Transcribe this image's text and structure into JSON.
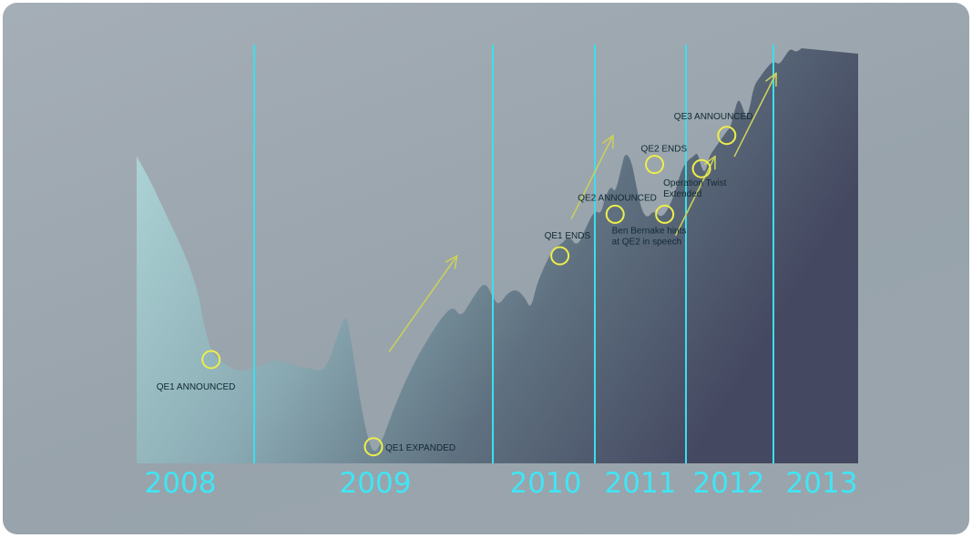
{
  "chart_data": {
    "type": "area",
    "colors": {
      "area_start": "#b3dcdc",
      "area_end": "#444860",
      "year_line": "#39e0f0",
      "year_label": "#3fe6f5",
      "marker": "#eeee4a",
      "arrow": "#c9cf5e"
    },
    "years": [
      {
        "label": "2008",
        "x_position": 2008.0
      },
      {
        "label": "2009",
        "x_position": 2009.0
      },
      {
        "label": "2010",
        "x_position": 2010.0
      },
      {
        "label": "2011",
        "x_position": 2011.0
      },
      {
        "label": "2012",
        "x_position": 2012.0
      },
      {
        "label": "2013",
        "x_position": 2013.0
      }
    ],
    "year_dividers": [
      2008.6,
      2009.8,
      2010.5,
      2011.4,
      2012.3
    ],
    "x_range": [
      2008.0,
      2013.8
    ],
    "y_range": [
      0,
      100
    ],
    "series": [
      {
        "values": [
          [
            2008.0,
            74
          ],
          [
            2008.06,
            69
          ],
          [
            2008.12,
            63
          ],
          [
            2008.18,
            57
          ],
          [
            2008.24,
            51
          ],
          [
            2008.28,
            46
          ],
          [
            2008.32,
            40
          ],
          [
            2008.34,
            34
          ],
          [
            2008.38,
            27
          ],
          [
            2008.42,
            25
          ],
          [
            2008.48,
            23
          ],
          [
            2008.54,
            22
          ],
          [
            2008.6,
            23
          ],
          [
            2008.66,
            24
          ],
          [
            2008.72,
            25
          ],
          [
            2008.78,
            24
          ],
          [
            2008.84,
            23
          ],
          [
            2008.88,
            23
          ],
          [
            2008.94,
            22
          ],
          [
            2008.98,
            25
          ],
          [
            2009.02,
            31
          ],
          [
            2009.06,
            36
          ],
          [
            2009.08,
            32
          ],
          [
            2009.12,
            19
          ],
          [
            2009.16,
            8
          ],
          [
            2009.2,
            2
          ],
          [
            2009.24,
            5
          ],
          [
            2009.3,
            13
          ],
          [
            2009.38,
            22
          ],
          [
            2009.46,
            29
          ],
          [
            2009.54,
            35
          ],
          [
            2009.6,
            38
          ],
          [
            2009.64,
            35
          ],
          [
            2009.7,
            40
          ],
          [
            2009.76,
            44
          ],
          [
            2009.8,
            40
          ],
          [
            2009.84,
            38
          ],
          [
            2009.9,
            41
          ],
          [
            2009.96,
            42
          ],
          [
            2010.02,
            40
          ],
          [
            2010.06,
            37
          ],
          [
            2010.1,
            43
          ],
          [
            2010.16,
            48
          ],
          [
            2010.22,
            52
          ],
          [
            2010.28,
            53
          ],
          [
            2010.32,
            55
          ],
          [
            2010.38,
            52
          ],
          [
            2010.44,
            57
          ],
          [
            2010.5,
            61
          ],
          [
            2010.56,
            60
          ],
          [
            2010.6,
            64
          ],
          [
            2010.66,
            67
          ],
          [
            2010.7,
            65
          ],
          [
            2010.76,
            71
          ],
          [
            2010.8,
            75
          ],
          [
            2010.86,
            73
          ],
          [
            2010.9,
            68
          ],
          [
            2010.96,
            61
          ],
          [
            2011.02,
            59
          ],
          [
            2011.08,
            61
          ],
          [
            2011.16,
            59
          ],
          [
            2011.24,
            62
          ],
          [
            2011.3,
            66
          ],
          [
            2011.36,
            71
          ],
          [
            2011.42,
            73
          ],
          [
            2011.48,
            74
          ],
          [
            2011.52,
            75
          ],
          [
            2011.56,
            71
          ],
          [
            2011.6,
            70
          ],
          [
            2011.64,
            74
          ],
          [
            2011.7,
            76
          ],
          [
            2011.76,
            78
          ],
          [
            2011.82,
            80
          ],
          [
            2011.86,
            81
          ],
          [
            2011.9,
            85
          ],
          [
            2011.94,
            88
          ],
          [
            2011.98,
            86
          ],
          [
            2012.02,
            83
          ],
          [
            2012.06,
            86
          ],
          [
            2012.1,
            91
          ],
          [
            2012.16,
            93
          ],
          [
            2012.22,
            95
          ],
          [
            2012.3,
            97
          ],
          [
            2012.4,
            96
          ],
          [
            2012.5,
            98
          ],
          [
            2012.6,
            100
          ],
          [
            2012.7,
            99
          ],
          [
            2012.8,
            100
          ]
        ]
      }
    ],
    "events": [
      {
        "label": "QE1 ANNOUNCED",
        "x": 2008.38,
        "y": 25
      },
      {
        "label": "QE1 EXPANDED",
        "x": 2009.2,
        "y": 4
      },
      {
        "label": "QE1 ENDS",
        "x": 2010.26,
        "y": 50
      },
      {
        "label": "QE2 ANNOUNCED",
        "x": 2010.7,
        "y": 60
      },
      {
        "label": "QE2 ENDS",
        "x": 2011.09,
        "y": 72
      },
      {
        "label": "Ben Bernake hints at QE2 in speech",
        "lines": [
          "Ben Bernake hints",
          "at QE2 in speech"
        ],
        "x": 2011.19,
        "y": 60
      },
      {
        "label": "Operation Twist Extended",
        "lines": [
          "Operation Twist",
          "Extended"
        ],
        "x": 2011.56,
        "y": 71
      },
      {
        "label": "QE3 ANNOUNCED",
        "x": 2011.82,
        "y": 79
      }
    ],
    "trend_arrows": [
      {
        "from": [
          2009.28,
          27
        ],
        "to": [
          2009.62,
          50
        ]
      },
      {
        "from": [
          2010.34,
          59
        ],
        "to": [
          2010.68,
          79
        ]
      },
      {
        "from": [
          2011.3,
          55
        ],
        "to": [
          2011.7,
          74
        ]
      },
      {
        "from": [
          2011.9,
          74
        ],
        "to": [
          2012.35,
          94
        ]
      }
    ]
  }
}
